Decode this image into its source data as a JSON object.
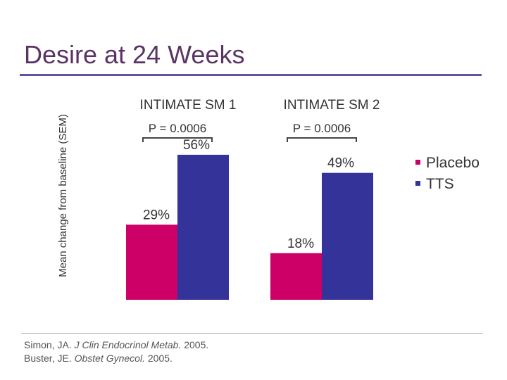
{
  "slide": {
    "title": "Desire at 24 Weeks",
    "ref1": {
      "author": "Simon, JA. ",
      "journal": "J Clin Endocrinol Metab.",
      "year": " 2005."
    },
    "ref2": {
      "author": "Buster, JE. ",
      "journal": "Obstet Gynecol.",
      "year": " 2005."
    }
  },
  "chart_data": {
    "type": "bar",
    "title": "Desire at 24 Weeks",
    "ylabel": "Mean change from baseline (SEM)",
    "ylim": [
      0,
      100
    ],
    "categories": [
      "INTIMATE SM 1",
      "INTIMATE SM 2"
    ],
    "series": [
      {
        "name": "Placebo",
        "color": "#cc0066",
        "values": [
          29,
          18
        ],
        "labels": [
          "29%",
          "18%"
        ]
      },
      {
        "name": "TTS",
        "color": "#333399",
        "values": [
          56,
          49
        ],
        "labels": [
          "56%",
          "49%"
        ]
      }
    ],
    "p_values": [
      "P = 0.0006",
      "P = 0.0006"
    ],
    "legend_position": "right"
  }
}
